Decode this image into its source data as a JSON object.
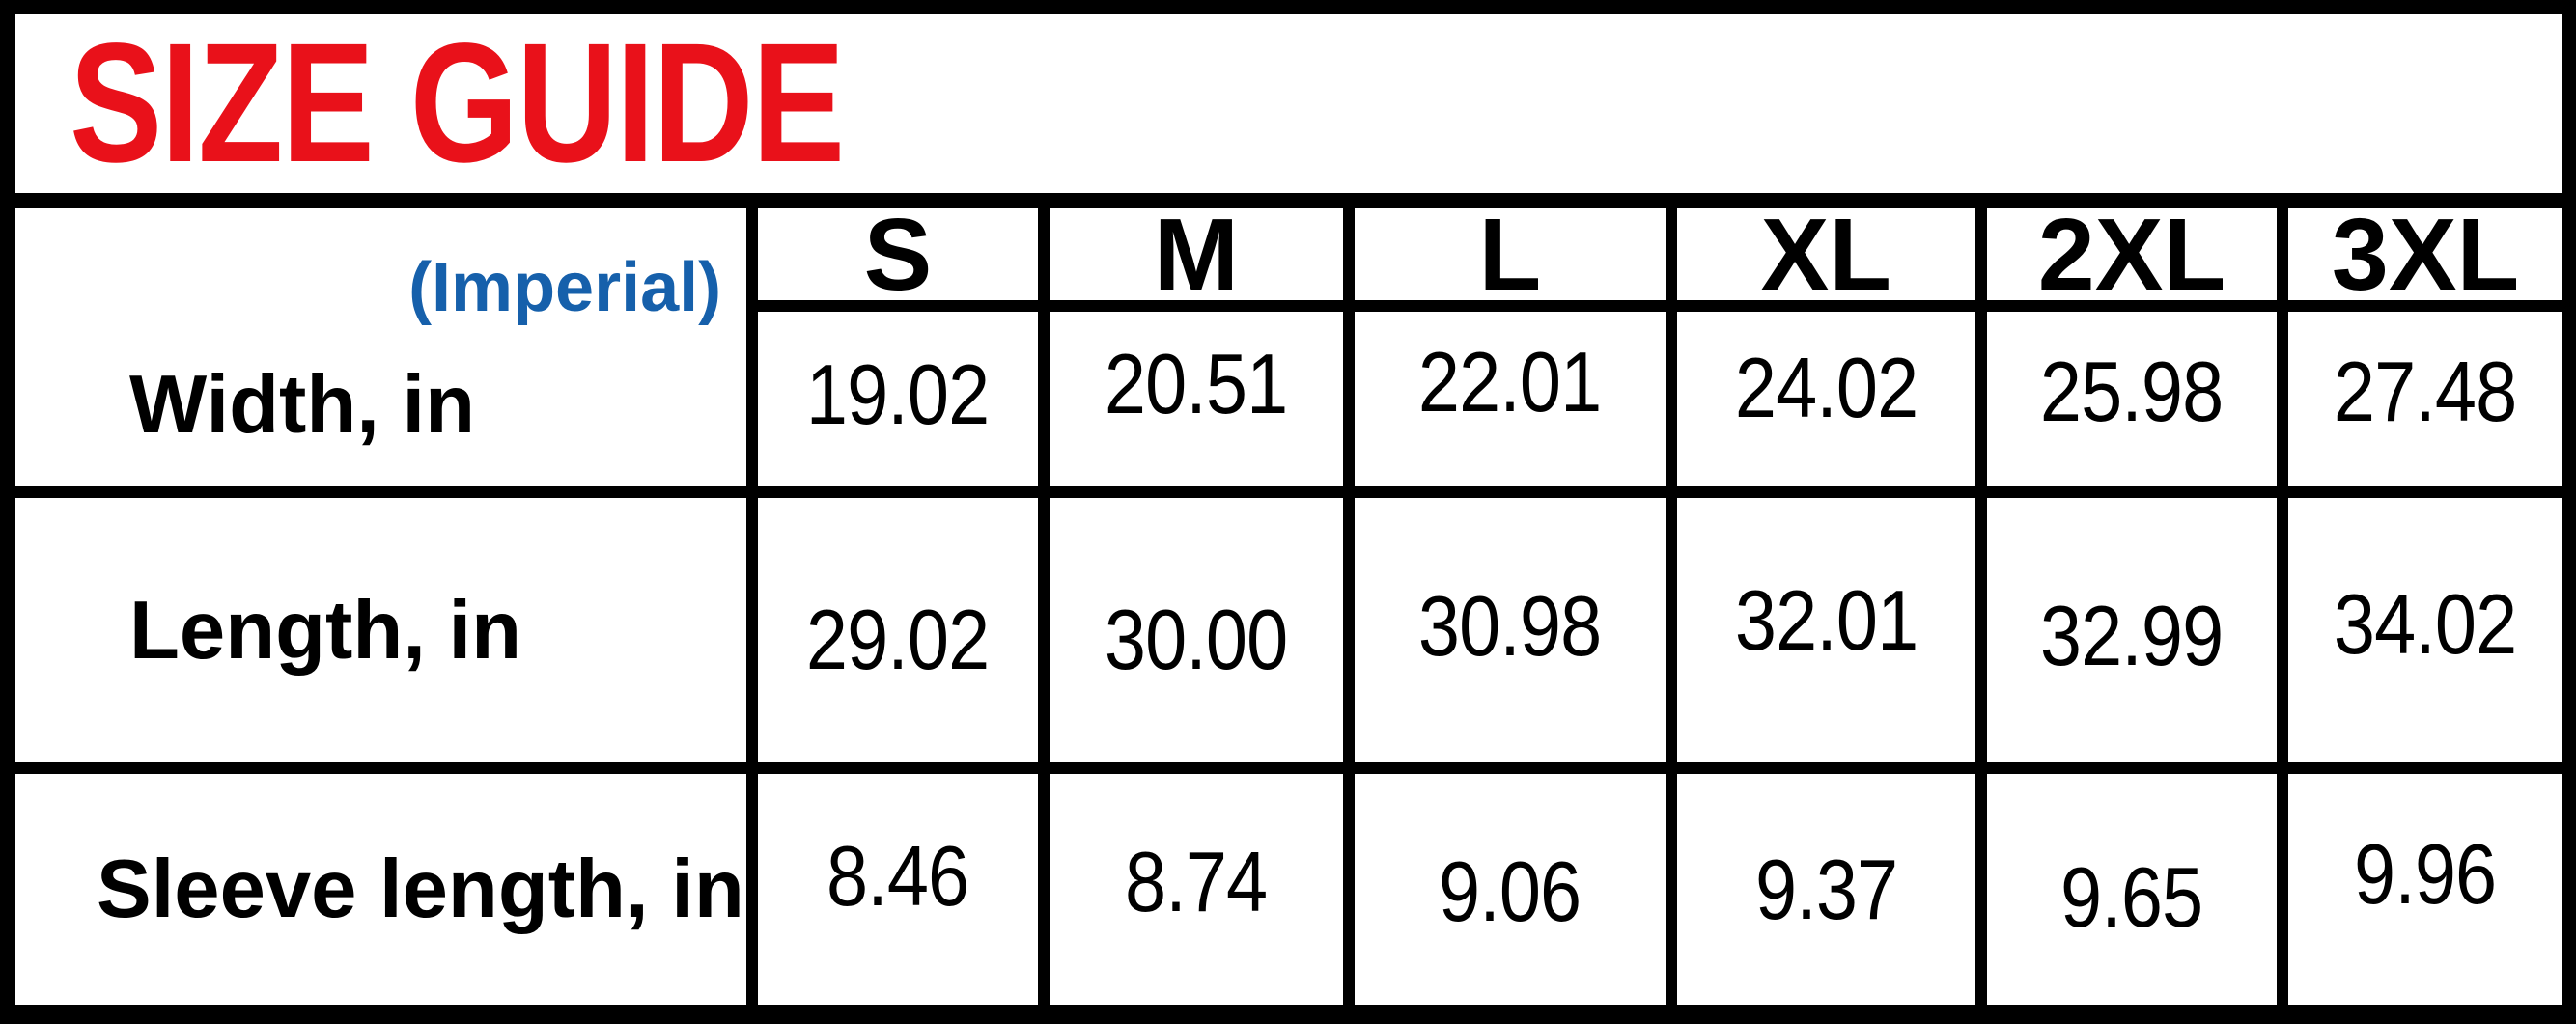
{
  "title": "SIZE GUIDE",
  "unit_label": "(Imperial)",
  "colors": {
    "title_red": "#e9111a",
    "imperial_blue": "#1660ab",
    "grid_black": "#000000",
    "cell_white": "#ffffff"
  },
  "table": {
    "columns": [
      "S",
      "M",
      "L",
      "XL",
      "2XL",
      "3XL"
    ],
    "rows": [
      {
        "label": "Width, in",
        "values": [
          "19.02",
          "20.51",
          "22.01",
          "24.02",
          "25.98",
          "27.48"
        ]
      },
      {
        "label": "Length, in",
        "values": [
          "29.02",
          "30.00",
          "30.98",
          "32.01",
          "32.99",
          "34.02"
        ]
      },
      {
        "label": "Sleeve length, in",
        "values": [
          "8.46",
          "8.74",
          "9.06",
          "9.37",
          "9.65",
          "9.96"
        ]
      }
    ]
  }
}
